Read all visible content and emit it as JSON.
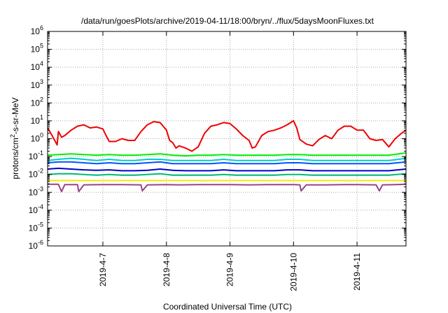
{
  "chart_data": {
    "type": "line",
    "title": "/data/run/goesPlots/archive/2019-04-11/18:00/bryn/../flux/5daysMoonFluxes.txt",
    "xlabel": "Coordinated Universal Time (UTC)",
    "ylabel_parts": {
      "pre": "protons/cm",
      "sup": "2",
      "post": "-s-sr-MeV"
    },
    "yscale": "log",
    "ylim_exp": [
      -6,
      6
    ],
    "xlim_days": [
      6.13,
      11.77
    ],
    "grid": true,
    "x_ticks": [
      {
        "day": 7,
        "label": "2019-4-7"
      },
      {
        "day": 8,
        "label": "2019-4-8"
      },
      {
        "day": 9,
        "label": "2019-4-9"
      },
      {
        "day": 10,
        "label": "2019-4-10"
      },
      {
        "day": 11,
        "label": "2019-4-11"
      }
    ],
    "y_ticks": [
      {
        "exp": 6,
        "base": "10",
        "sup": "6"
      },
      {
        "exp": 5,
        "base": "10",
        "sup": "5"
      },
      {
        "exp": 4,
        "base": "10",
        "sup": "4"
      },
      {
        "exp": 3,
        "base": "10",
        "sup": "3"
      },
      {
        "exp": 2,
        "base": "10",
        "sup": "2"
      },
      {
        "exp": 1,
        "base": "10",
        "sup": "1"
      },
      {
        "exp": 0,
        "base": "10",
        "sup": "0"
      },
      {
        "exp": -1,
        "base": "10",
        "sup": "-1"
      },
      {
        "exp": -2,
        "base": "10",
        "sup": "-2"
      },
      {
        "exp": -3,
        "base": "10",
        "sup": "-3"
      },
      {
        "exp": -4,
        "base": "10",
        "sup": "-4"
      },
      {
        "exp": -5,
        "base": "10",
        "sup": "-5"
      },
      {
        "exp": -6,
        "base": "10",
        "sup": "-6"
      }
    ],
    "series": [
      {
        "color": "#ee0000",
        "x": [
          6.13,
          6.2,
          6.28,
          6.3,
          6.35,
          6.4,
          6.5,
          6.6,
          6.7,
          6.8,
          6.9,
          7.0,
          7.05,
          7.1,
          7.2,
          7.3,
          7.4,
          7.5,
          7.6,
          7.7,
          7.8,
          7.9,
          8.0,
          8.05,
          8.1,
          8.15,
          8.2,
          8.3,
          8.4,
          8.5,
          8.6,
          8.7,
          8.8,
          8.9,
          9.0,
          9.1,
          9.2,
          9.3,
          9.35,
          9.4,
          9.5,
          9.6,
          9.7,
          9.8,
          9.9,
          10.0,
          10.05,
          10.1,
          10.2,
          10.3,
          10.4,
          10.5,
          10.6,
          10.7,
          10.8,
          10.9,
          11.0,
          11.1,
          11.2,
          11.3,
          11.4,
          11.5,
          11.6,
          11.7,
          11.77
        ],
        "y": [
          4.0,
          1.5,
          0.45,
          2.5,
          1.2,
          1.5,
          3.0,
          5.0,
          6.0,
          4.0,
          4.5,
          3.5,
          1.5,
          0.7,
          0.7,
          1.0,
          0.8,
          0.8,
          2.5,
          6.0,
          9.0,
          8.0,
          3.0,
          0.8,
          0.6,
          0.3,
          0.4,
          0.3,
          0.2,
          0.35,
          2.0,
          5.0,
          6.0,
          8.0,
          7.0,
          3.5,
          1.5,
          0.8,
          0.3,
          0.35,
          1.5,
          2.5,
          3.0,
          4.0,
          6.0,
          10.0,
          4.0,
          0.9,
          0.5,
          0.4,
          0.9,
          1.5,
          1.0,
          3.0,
          5.0,
          5.0,
          3.0,
          3.0,
          1.0,
          0.8,
          0.9,
          0.35,
          1.0,
          2.0,
          3.0
        ]
      },
      {
        "color": "#00ee00",
        "x": [
          6.13,
          6.3,
          6.5,
          6.7,
          6.9,
          7.1,
          7.3,
          7.5,
          7.7,
          7.9,
          8.1,
          8.3,
          8.5,
          8.7,
          8.9,
          9.1,
          9.3,
          9.5,
          9.7,
          9.9,
          10.1,
          10.3,
          10.5,
          10.7,
          10.9,
          11.1,
          11.3,
          11.5,
          11.77
        ],
        "y": [
          0.12,
          0.13,
          0.14,
          0.13,
          0.12,
          0.13,
          0.12,
          0.12,
          0.13,
          0.14,
          0.12,
          0.11,
          0.12,
          0.12,
          0.13,
          0.12,
          0.12,
          0.12,
          0.12,
          0.13,
          0.13,
          0.12,
          0.12,
          0.12,
          0.12,
          0.12,
          0.12,
          0.12,
          0.16
        ]
      },
      {
        "color": "#00cccc",
        "x": [
          6.13,
          6.3,
          6.5,
          6.7,
          6.9,
          7.1,
          7.3,
          7.5,
          7.7,
          7.9,
          8.1,
          8.3,
          8.5,
          8.7,
          8.9,
          9.1,
          9.3,
          9.5,
          9.7,
          9.9,
          10.1,
          10.3,
          10.5,
          10.7,
          10.9,
          11.1,
          11.3,
          11.5,
          11.77
        ],
        "y": [
          0.06,
          0.07,
          0.08,
          0.07,
          0.06,
          0.07,
          0.06,
          0.06,
          0.07,
          0.07,
          0.06,
          0.06,
          0.06,
          0.06,
          0.07,
          0.06,
          0.06,
          0.06,
          0.06,
          0.07,
          0.07,
          0.06,
          0.06,
          0.06,
          0.06,
          0.06,
          0.06,
          0.06,
          0.08
        ]
      },
      {
        "color": "#0055ff",
        "x": [
          6.13,
          6.3,
          6.5,
          6.7,
          6.9,
          7.1,
          7.3,
          7.5,
          7.7,
          7.9,
          8.1,
          8.3,
          8.5,
          8.7,
          8.9,
          9.1,
          9.3,
          9.5,
          9.7,
          9.9,
          10.1,
          10.3,
          10.5,
          10.7,
          10.9,
          11.1,
          11.3,
          11.5,
          11.77
        ],
        "y": [
          0.045,
          0.05,
          0.05,
          0.045,
          0.04,
          0.045,
          0.04,
          0.04,
          0.045,
          0.05,
          0.04,
          0.04,
          0.04,
          0.04,
          0.045,
          0.04,
          0.04,
          0.04,
          0.04,
          0.045,
          0.045,
          0.04,
          0.04,
          0.04,
          0.04,
          0.04,
          0.04,
          0.04,
          0.05
        ]
      },
      {
        "color": "#00bb77",
        "x": [
          6.13,
          6.3,
          6.5,
          6.7,
          6.9,
          7.1,
          7.3,
          7.5,
          7.7,
          7.9,
          8.1,
          8.3,
          8.5,
          8.7,
          8.9,
          9.1,
          9.3,
          9.5,
          9.7,
          9.9,
          10.1,
          10.3,
          10.5,
          10.7,
          10.9,
          11.1,
          11.3,
          11.5,
          11.77
        ],
        "y": [
          0.01,
          0.011,
          0.011,
          0.01,
          0.009,
          0.01,
          0.009,
          0.009,
          0.01,
          0.011,
          0.009,
          0.009,
          0.009,
          0.009,
          0.01,
          0.009,
          0.009,
          0.009,
          0.009,
          0.01,
          0.01,
          0.009,
          0.009,
          0.009,
          0.009,
          0.009,
          0.009,
          0.009,
          0.011
        ]
      },
      {
        "color": "#0000cc",
        "x": [
          6.13,
          6.3,
          6.5,
          6.7,
          6.9,
          7.1,
          7.3,
          7.5,
          7.7,
          7.9,
          8.1,
          8.3,
          8.5,
          8.7,
          8.9,
          9.1,
          9.3,
          9.5,
          9.7,
          9.9,
          10.1,
          10.3,
          10.5,
          10.7,
          10.9,
          11.1,
          11.3,
          11.5,
          11.77
        ],
        "y": [
          0.02,
          0.022,
          0.02,
          0.018,
          0.017,
          0.018,
          0.016,
          0.016,
          0.017,
          0.02,
          0.017,
          0.016,
          0.016,
          0.016,
          0.018,
          0.016,
          0.016,
          0.016,
          0.016,
          0.018,
          0.018,
          0.016,
          0.016,
          0.016,
          0.016,
          0.016,
          0.016,
          0.016,
          0.02
        ]
      },
      {
        "color": "#eeee00",
        "x": [
          6.13,
          6.5,
          7.0,
          7.5,
          8.0,
          8.5,
          9.0,
          9.5,
          10.0,
          10.5,
          11.0,
          11.5,
          11.77
        ],
        "y": [
          0.0045,
          0.0045,
          0.0045,
          0.0045,
          0.0045,
          0.0045,
          0.0045,
          0.0045,
          0.0045,
          0.0045,
          0.0045,
          0.0045,
          0.0045
        ]
      },
      {
        "color": "#994488",
        "x": [
          6.13,
          6.3,
          6.35,
          6.4,
          6.6,
          6.62,
          6.7,
          7.0,
          7.3,
          7.6,
          7.62,
          7.7,
          8.0,
          8.2,
          8.5,
          8.8,
          9.0,
          9.3,
          9.6,
          9.8,
          10.0,
          10.1,
          10.12,
          10.2,
          10.5,
          10.8,
          11.0,
          11.3,
          11.35,
          11.4,
          11.6,
          11.77
        ],
        "y": [
          0.0028,
          0.0028,
          0.0011,
          0.0027,
          0.0027,
          0.0011,
          0.0026,
          0.0027,
          0.0027,
          0.0026,
          0.0012,
          0.0026,
          0.0027,
          0.0026,
          0.0027,
          0.0027,
          0.0027,
          0.0026,
          0.0027,
          0.0027,
          0.0027,
          0.0026,
          0.0012,
          0.0026,
          0.0026,
          0.0027,
          0.0027,
          0.0026,
          0.0012,
          0.0026,
          0.0027,
          0.0028
        ]
      }
    ]
  }
}
